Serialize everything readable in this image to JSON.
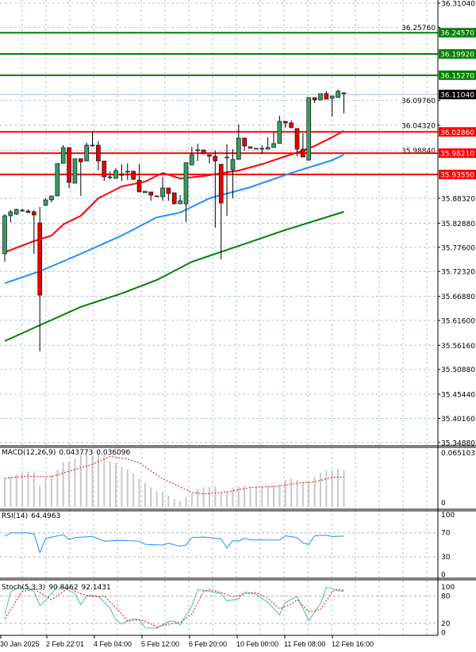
{
  "price_axis": {
    "ticks": [
      "36.31040",
      "36.25760",
      "36.09760",
      "36.04320",
      "35.98840",
      "35.88320",
      "35.82880",
      "35.77600",
      "35.72320",
      "35.66880",
      "35.61600",
      "35.56160",
      "35.50880",
      "35.45440",
      "35.40160",
      "35.34880"
    ],
    "current_price": "36.11040",
    "current_price_color": "#000000"
  },
  "levels": {
    "resistance": [
      "36.24570",
      "36.19920",
      "36.15270"
    ],
    "support": [
      "36.02860",
      "35.98210",
      "35.93550"
    ],
    "resistance_color": "#008000",
    "support_color": "#ff0000"
  },
  "time_axis": [
    "30 Jan 2025",
    "2 Feb 22:01",
    "4 Feb 04:00",
    "5 Feb 12:00",
    "6 Feb 20:00",
    "10 Feb 00:00",
    "11 Feb 08:00",
    "12 Feb 16:00"
  ],
  "colors": {
    "bull": "#3a9a62",
    "bear": "#e60000",
    "ma_fast": "#ff0000",
    "ma_mid": "#1e90ff",
    "ma_slow": "#008000",
    "macd_hist": "#c8c8c8",
    "signal": "#ff0000",
    "rsi": "#1e90ff",
    "stoch_k": "#40c0b0",
    "stoch_d": "#ff0000"
  },
  "chart_data": [
    {
      "type": "candlestick",
      "ylim": [
        35.3488,
        36.3104
      ],
      "ohlc": [
        [
          35.7618,
          35.8486,
          35.7444,
          35.8451
        ],
        [
          35.8451,
          35.8573,
          35.8312,
          35.8538
        ],
        [
          35.8486,
          35.8607,
          35.8468,
          35.859
        ],
        [
          35.8573,
          35.8607,
          35.8538,
          35.8573
        ],
        [
          35.8555,
          35.859,
          35.8521,
          35.8521
        ],
        [
          35.8538,
          35.8573,
          35.7618,
          35.8468
        ],
        [
          35.8295,
          35.8642,
          35.5483,
          35.6715
        ],
        [
          35.8677,
          35.8833,
          35.8677,
          35.8798
        ],
        [
          35.8798,
          35.8885,
          35.8746,
          35.8885
        ],
        [
          35.8885,
          35.9597,
          35.8885,
          35.9597
        ],
        [
          35.9597,
          35.9996,
          35.9597,
          35.9944
        ],
        [
          35.9944,
          35.9944,
          35.9059,
          35.918
        ],
        [
          35.9163,
          35.9701,
          35.9163,
          35.9701
        ],
        [
          35.9701,
          35.9701,
          35.8885,
          35.9632
        ],
        [
          35.9649,
          36.0048,
          35.9649,
          35.9996
        ],
        [
          35.9996,
          36.0291,
          35.9961,
          35.9996
        ],
        [
          35.9996,
          36.0083,
          35.9441,
          35.9649
        ],
        [
          35.9649,
          35.9649,
          35.9215,
          35.9302
        ],
        [
          35.9302,
          35.9423,
          35.925,
          35.9284
        ],
        [
          35.9267,
          35.9493,
          35.9267,
          35.9441
        ],
        [
          35.9354,
          35.9579,
          35.9215,
          35.9354
        ],
        [
          35.9423,
          35.9597,
          35.9232,
          35.9423
        ],
        [
          35.9423,
          35.9441,
          35.9232,
          35.925
        ],
        [
          35.9232,
          35.9579,
          35.8972,
          35.8972
        ],
        [
          35.8955,
          35.8989,
          35.8955,
          35.8989
        ],
        [
          35.8972,
          35.8972,
          35.8781,
          35.8902
        ],
        [
          35.8885,
          35.8885,
          35.8868,
          35.8868
        ],
        [
          35.8868,
          35.9302,
          35.8781,
          35.9059
        ],
        [
          35.9059,
          35.9059,
          35.8781,
          35.8937
        ],
        [
          35.8955,
          35.8955,
          35.8711,
          35.8711
        ],
        [
          35.8711,
          35.8902,
          35.8711,
          35.8781
        ],
        [
          35.8711,
          35.9614,
          35.8312,
          35.9614
        ],
        [
          35.9562,
          35.9961,
          35.9562,
          35.9788
        ],
        [
          35.9892,
          36.0031,
          35.9649,
          35.9892
        ],
        [
          35.9892,
          35.9892,
          35.9805,
          35.9805
        ],
        [
          35.9788,
          35.9788,
          35.9597,
          35.9753
        ],
        [
          35.9753,
          35.9875,
          35.8191,
          35.9649
        ],
        [
          35.9579,
          35.9579,
          35.7496,
          35.8729
        ],
        [
          35.9736,
          36.0013,
          35.8451,
          35.9736
        ],
        [
          35.9458,
          35.9909,
          35.8833,
          35.9684
        ],
        [
          35.9684,
          36.0447,
          35.9684,
          36.0152
        ],
        [
          36.0152,
          36.0152,
          35.9875,
          35.9979
        ],
        [
          35.9961,
          35.9961,
          35.9927,
          35.9927
        ],
        [
          35.9927,
          35.9927,
          35.9927,
          35.9927
        ],
        [
          35.9927,
          35.9996,
          35.9805,
          35.9927
        ],
        [
          35.9909,
          36.017,
          35.9909,
          35.9944
        ],
        [
          35.9944,
          36.0291,
          35.9944,
          36.0031
        ],
        [
          36.0031,
          36.0638,
          36.0031,
          36.0517
        ],
        [
          36.0517,
          36.0517,
          36.0378,
          36.0482
        ],
        [
          36.0482,
          36.0534,
          36.0378,
          36.0378
        ],
        [
          36.0361,
          36.0361,
          35.9753,
          35.9909
        ],
        [
          35.9909,
          36.0257,
          35.9736,
          35.9736
        ],
        [
          35.9666,
          36.1038,
          35.9666,
          36.1038
        ],
        [
          36.1038,
          36.1038,
          36.0916,
          36.0986
        ],
        [
          36.0986,
          36.1125,
          36.0986,
          36.1125
        ],
        [
          36.1125,
          36.1177,
          36.1003,
          36.1003
        ],
        [
          36.102,
          36.1072,
          36.0621,
          36.1072
        ],
        [
          36.1038,
          36.1211,
          36.1038,
          36.1177
        ],
        [
          36.1142,
          36.1142,
          36.0691,
          36.1125
        ]
      ],
      "ma_fast": [
        [
          0,
          35.7653
        ],
        [
          5,
          35.7896
        ],
        [
          8,
          35.8017
        ],
        [
          10,
          35.826
        ],
        [
          13,
          35.8451
        ],
        [
          16,
          35.8833
        ],
        [
          20,
          35.9093
        ],
        [
          24,
          35.9198
        ],
        [
          27,
          35.9388
        ],
        [
          30,
          35.9267
        ],
        [
          34,
          35.9319
        ],
        [
          40,
          35.9441
        ],
        [
          44,
          35.9579
        ],
        [
          48,
          35.9753
        ],
        [
          51,
          35.9875
        ],
        [
          53,
          35.9979
        ],
        [
          56,
          36.017
        ],
        [
          58,
          36.0309
        ]
      ],
      "ma_mid": [
        [
          0,
          35.6975
        ],
        [
          6,
          35.7236
        ],
        [
          13,
          35.7618
        ],
        [
          20,
          35.8017
        ],
        [
          26,
          35.8416
        ],
        [
          30,
          35.8521
        ],
        [
          35,
          35.8833
        ],
        [
          42,
          35.9076
        ],
        [
          49,
          35.9388
        ],
        [
          56,
          35.9666
        ],
        [
          58,
          35.9788
        ]
      ],
      "ma_slow": [
        [
          0,
          35.5708
        ],
        [
          6,
          35.6055
        ],
        [
          13,
          35.6455
        ],
        [
          20,
          35.675
        ],
        [
          26,
          35.7045
        ],
        [
          32,
          35.7444
        ],
        [
          40,
          35.7791
        ],
        [
          48,
          35.8139
        ],
        [
          58,
          35.8538
        ]
      ]
    },
    {
      "type": "bar",
      "title": "MACD(12,26,9) 0.043773 0.036096",
      "title_parts": [
        "MACD(12,26,9)",
        "0.043773",
        "0.036096"
      ],
      "ylim": [
        0,
        0.065103
      ],
      "y_ticks": [
        "0.065103",
        "0"
      ],
      "histogram": [
        0.0346,
        0.0359,
        0.0394,
        0.0403,
        0.0422,
        0.0422,
        0.0254,
        0.0346,
        0.0381,
        0.0445,
        0.0543,
        0.0553,
        0.0587,
        0.0626,
        0.0632,
        0.0626,
        0.0632,
        0.0626,
        0.0546,
        0.053,
        0.0483,
        0.0451,
        0.0403,
        0.034,
        0.0286,
        0.0238,
        0.0187,
        0.0181,
        0.0133,
        0.0095,
        0.0064,
        0.0124,
        0.0165,
        0.0213,
        0.0238,
        0.0245,
        0.0251,
        0.0165,
        0.0187,
        0.0235,
        0.0245,
        0.026,
        0.0245,
        0.0251,
        0.0251,
        0.0251,
        0.0251,
        0.026,
        0.033,
        0.034,
        0.0324,
        0.0292,
        0.0308,
        0.0365,
        0.041,
        0.0441,
        0.0445,
        0.046,
        0.0438
      ],
      "signal": [
        [
          0,
          0.0346
        ],
        [
          4,
          0.0372
        ],
        [
          8,
          0.0365
        ],
        [
          12,
          0.0451
        ],
        [
          15,
          0.0514
        ],
        [
          18,
          0.061
        ],
        [
          21,
          0.0578
        ],
        [
          23,
          0.053
        ],
        [
          27,
          0.034
        ],
        [
          32,
          0.0175
        ],
        [
          34,
          0.0156
        ],
        [
          38,
          0.0181
        ],
        [
          42,
          0.0235
        ],
        [
          46,
          0.0245
        ],
        [
          50,
          0.0286
        ],
        [
          53,
          0.0302
        ],
        [
          56,
          0.0356
        ],
        [
          58,
          0.0361
        ]
      ]
    },
    {
      "type": "line",
      "title": "RSI(14) 64.4963",
      "title_parts": [
        "RSI(14)",
        "64.4963"
      ],
      "ylim": [
        0,
        100
      ],
      "y_ticks": [
        "100",
        "70",
        "30",
        "0"
      ],
      "levels": [
        70,
        30
      ],
      "values": [
        [
          0,
          64.3
        ],
        [
          1,
          70
        ],
        [
          4,
          70
        ],
        [
          5,
          68
        ],
        [
          6,
          37
        ],
        [
          7,
          60.6
        ],
        [
          10,
          67
        ],
        [
          11,
          59
        ],
        [
          12,
          62
        ],
        [
          15,
          64
        ],
        [
          17,
          56
        ],
        [
          20,
          57.5
        ],
        [
          23,
          56
        ],
        [
          24,
          51
        ],
        [
          27,
          49.6
        ],
        [
          28,
          52.6
        ],
        [
          30,
          47.7
        ],
        [
          31,
          49.6
        ],
        [
          32,
          62
        ],
        [
          34,
          63
        ],
        [
          37,
          60
        ],
        [
          38,
          44.7
        ],
        [
          39,
          57
        ],
        [
          40,
          56
        ],
        [
          41,
          61
        ],
        [
          42,
          58
        ],
        [
          47,
          58
        ],
        [
          48,
          65
        ],
        [
          50,
          62
        ],
        [
          51,
          53
        ],
        [
          52,
          50.6
        ],
        [
          53,
          65
        ],
        [
          55,
          66
        ],
        [
          56,
          63.6
        ],
        [
          58,
          64.5
        ]
      ]
    },
    {
      "type": "line",
      "title": "Stoch(5,3,3) 90.8462 92.1431",
      "title_parts": [
        "Stoch(5,3,3)",
        "90.8462",
        "92.1431"
      ],
      "ylim": [
        0,
        100
      ],
      "y_ticks": [
        "100",
        "80",
        "20",
        "0"
      ],
      "levels": [
        80,
        20
      ],
      "k": [
        [
          0,
          38.7
        ],
        [
          1,
          88.9
        ],
        [
          2,
          97.7
        ],
        [
          4,
          97.7
        ],
        [
          5,
          90
        ],
        [
          6,
          59
        ],
        [
          7,
          70.7
        ],
        [
          9,
          100
        ],
        [
          10,
          98.8
        ],
        [
          12,
          85.4
        ],
        [
          13,
          60.8
        ],
        [
          14,
          80.5
        ],
        [
          15,
          82
        ],
        [
          16,
          79.5
        ],
        [
          18,
          53.5
        ],
        [
          19,
          26.4
        ],
        [
          20,
          19
        ],
        [
          22,
          29.9
        ],
        [
          23,
          27.9
        ],
        [
          24,
          10
        ],
        [
          26,
          9
        ],
        [
          28,
          24
        ],
        [
          29,
          25
        ],
        [
          30,
          16.6
        ],
        [
          32,
          58.4
        ],
        [
          33,
          94.3
        ],
        [
          35,
          90.4
        ],
        [
          37,
          85.4
        ],
        [
          38,
          69.2
        ],
        [
          40,
          74
        ],
        [
          41,
          88.9
        ],
        [
          43,
          84
        ],
        [
          45,
          65.7
        ],
        [
          47,
          38.7
        ],
        [
          48,
          65.7
        ],
        [
          50,
          79.5
        ],
        [
          52,
          25.9
        ],
        [
          54,
          63.3
        ],
        [
          55,
          98.8
        ],
        [
          56,
          96.4
        ],
        [
          57,
          91.4
        ],
        [
          58,
          90.8
        ]
      ],
      "d": [
        [
          0,
          30
        ],
        [
          1,
          50
        ],
        [
          3,
          90
        ],
        [
          5,
          95
        ],
        [
          7,
          80
        ],
        [
          8,
          72
        ],
        [
          10,
          90
        ],
        [
          11,
          98
        ],
        [
          13,
          85
        ],
        [
          15,
          78
        ],
        [
          17,
          80
        ],
        [
          19,
          55
        ],
        [
          21,
          25
        ],
        [
          23,
          28
        ],
        [
          24,
          25
        ],
        [
          26,
          12
        ],
        [
          28,
          18
        ],
        [
          30,
          22
        ],
        [
          32,
          40
        ],
        [
          34,
          90
        ],
        [
          35,
          94
        ],
        [
          37,
          88
        ],
        [
          39,
          78
        ],
        [
          41,
          85
        ],
        [
          43,
          88
        ],
        [
          45,
          75
        ],
        [
          47,
          52
        ],
        [
          49,
          62
        ],
        [
          50,
          72
        ],
        [
          52,
          45
        ],
        [
          54,
          50
        ],
        [
          56,
          90
        ],
        [
          57,
          95
        ],
        [
          58,
          92.1
        ]
      ]
    }
  ]
}
